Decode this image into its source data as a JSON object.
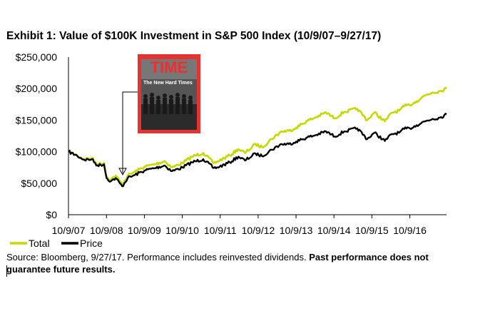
{
  "chart_data": {
    "type": "line",
    "title": "Exhibit 1: Value of $100K Investment in S&P 500 Index (10/9/07–9/27/17)",
    "xlabel": "",
    "ylabel": "",
    "ylim": [
      0,
      250000
    ],
    "yticks": [
      "$0",
      "$50,000",
      "$100,000",
      "$150,000",
      "$200,000",
      "$250,000"
    ],
    "ytick_values": [
      0,
      50000,
      100000,
      150000,
      200000,
      250000
    ],
    "xticks": [
      "10/9/07",
      "10/9/08",
      "10/9/09",
      "10/9/10",
      "10/9/11",
      "10/9/12",
      "10/9/13",
      "10/9/14",
      "10/9/15",
      "10/9/16"
    ],
    "xlim": [
      "2007-10-09",
      "2017-09-27"
    ],
    "grid": false,
    "legend": "bottom-left",
    "x": [
      "2007-10-09",
      "2007-12-31",
      "2008-03-10",
      "2008-05-19",
      "2008-07-15",
      "2008-09-15",
      "2008-10-10",
      "2008-11-20",
      "2009-01-06",
      "2009-03-09",
      "2009-05-01",
      "2009-07-10",
      "2009-10-09",
      "2010-01-19",
      "2010-04-23",
      "2010-07-02",
      "2010-10-11",
      "2011-01-10",
      "2011-04-29",
      "2011-08-08",
      "2011-10-03",
      "2012-01-09",
      "2012-04-02",
      "2012-06-04",
      "2012-09-14",
      "2012-11-15",
      "2013-02-15",
      "2013-05-21",
      "2013-08-01",
      "2013-10-09",
      "2014-01-15",
      "2014-04-11",
      "2014-07-24",
      "2014-10-15",
      "2015-01-15",
      "2015-05-21",
      "2015-08-25",
      "2015-11-03",
      "2016-02-11",
      "2016-04-20",
      "2016-06-27",
      "2016-08-15",
      "2016-10-09",
      "2016-12-13",
      "2017-03-01",
      "2017-05-17",
      "2017-07-26",
      "2017-09-27"
    ],
    "series": [
      {
        "name": "Total",
        "color": "#c5d900",
        "values": [
          100000,
          94000,
          88000,
          90000,
          80000,
          82000,
          60000,
          56000,
          62000,
          48000,
          62000,
          68000,
          76000,
          80000,
          85000,
          75000,
          82000,
          92000,
          98000,
          82000,
          86000,
          94000,
          104000,
          98000,
          112000,
          107000,
          120000,
          132000,
          133000,
          138000,
          148000,
          154000,
          162000,
          153000,
          163000,
          168000,
          150000,
          162000,
          148000,
          162000,
          165000,
          172000,
          174000,
          180000,
          189000,
          194000,
          196000,
          200000
        ]
      },
      {
        "name": "Price",
        "color": "#000000",
        "values": [
          100000,
          93500,
          87000,
          88000,
          78000,
          80000,
          58000,
          53000,
          58000,
          45000,
          58000,
          63000,
          70000,
          74000,
          78000,
          69000,
          75000,
          83000,
          88000,
          74000,
          76000,
          83000,
          92000,
          86000,
          97000,
          93000,
          103000,
          112000,
          112000,
          116000,
          122000,
          126000,
          132000,
          124000,
          132000,
          137000,
          120000,
          130000,
          117000,
          128000,
          130000,
          136000,
          137000,
          142000,
          148000,
          152000,
          154000,
          159000
        ]
      }
    ]
  },
  "inset_image": {
    "description": "",
    "magazine_title": "TIME",
    "headline": "The New Hard Times",
    "frame_color": "#e53232"
  },
  "source_note": "Source: Bloomberg, 9/27/17. Performance includes reinvested dividends.",
  "source_bold": "Past performance does not guarantee future results."
}
